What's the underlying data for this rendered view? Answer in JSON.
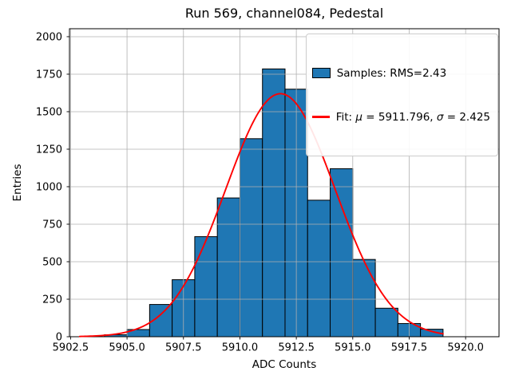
{
  "chart_data": {
    "type": "bar",
    "subtype": "histogram-with-gaussian-fit",
    "title": "Run 569, channel084, Pedestal",
    "xlabel": "ADC Counts",
    "ylabel": "Entries",
    "bin_edges": [
      5904,
      5905,
      5906,
      5907,
      5908,
      5909,
      5910,
      5911,
      5912,
      5913,
      5914,
      5915,
      5916,
      5917,
      5918,
      5919
    ],
    "counts": [
      13,
      48,
      215,
      380,
      667,
      925,
      1320,
      1785,
      1650,
      910,
      1120,
      515,
      190,
      88,
      50
    ],
    "series": [
      {
        "name": "Samples: RMS=2.43",
        "type": "histogram"
      },
      {
        "name": "Fit: μ = 5911.796, σ = 2.425",
        "type": "line"
      }
    ],
    "fit": {
      "mu": 5911.796,
      "sigma": 2.425,
      "amplitude": 1620,
      "x_start": 5902.9,
      "x_end": 5919.0
    },
    "xlim": [
      5902.45,
      5921.48
    ],
    "ylim": [
      0,
      2053
    ],
    "xticks": [
      5902.5,
      5905.0,
      5907.5,
      5910.0,
      5912.5,
      5915.0,
      5917.5,
      5920.0
    ],
    "xtick_labels": [
      "5902.5",
      "5905.0",
      "5907.5",
      "5910.0",
      "5912.5",
      "5915.0",
      "5917.5",
      "5920.0"
    ],
    "yticks": [
      0,
      250,
      500,
      750,
      1000,
      1250,
      1500,
      1750,
      2000
    ],
    "ytick_labels": [
      "0",
      "250",
      "500",
      "750",
      "1000",
      "1250",
      "1500",
      "1750",
      "2000"
    ],
    "grid": true,
    "legend_position": "upper right",
    "colors": {
      "bar_fill": "#1f77b4",
      "bar_edge": "#000000",
      "fit_line": "#ff0000",
      "grid": "#b0b0b0",
      "spine": "#000000"
    }
  },
  "legend": {
    "samples": {
      "label": "Samples: RMS=2.43"
    },
    "fit": {
      "prefix": "Fit: ",
      "mu_symbol": "μ",
      "mu_value": " = 5911.796, ",
      "sigma_symbol": "σ",
      "sigma_value": " = 2.425"
    }
  }
}
